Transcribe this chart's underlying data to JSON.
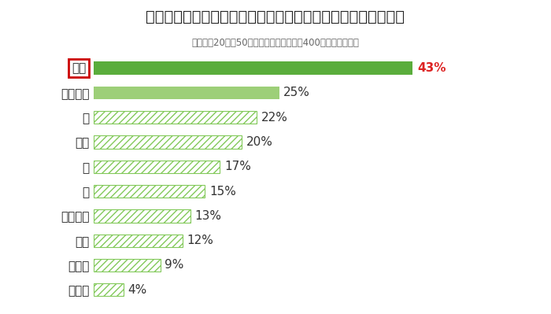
{
  "title": "夏冷え対策に食べたい、もしくは食べている食材は何ですか？",
  "subtitle": "全国男女20代〜50代のオフィスワーカー400名（複数回答）",
  "categories": [
    "生姜",
    "にんにく",
    "肉",
    "ネギ",
    "卵",
    "魚",
    "かぼちゃ",
    "にら",
    "小松菜",
    "その他"
  ],
  "values": [
    43,
    25,
    22,
    20,
    17,
    15,
    13,
    12,
    9,
    4
  ],
  "bar_color_solid": "#5aad3c",
  "bar_color_light": "#9dcf78",
  "hatch_facecolor": "#ffffff",
  "hatch_edgecolor": "#82c95a",
  "hatch_pattern": "////",
  "value_color_first": "#dd2222",
  "value_color_rest": "#333333",
  "label_color": "#222222",
  "title_color": "#222222",
  "subtitle_color": "#666666",
  "background_color": "#ffffff",
  "box_edge_color": "#cc0000",
  "xlim": [
    0,
    52
  ],
  "title_fontsize": 14,
  "subtitle_fontsize": 8.5,
  "label_fontsize": 11,
  "value_fontsize": 11,
  "bar_height": 0.52
}
